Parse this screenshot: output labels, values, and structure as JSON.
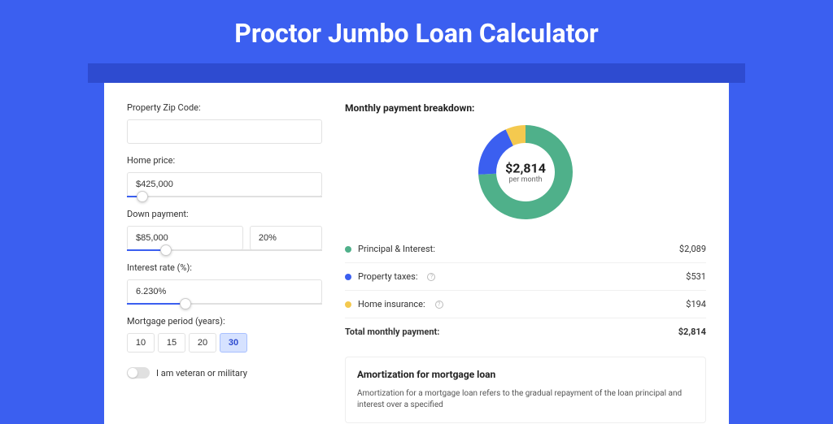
{
  "page": {
    "title": "Proctor Jumbo Loan Calculator",
    "background_color": "#3b5ff0",
    "accent_color": "#2e4bd0"
  },
  "form": {
    "zip": {
      "label": "Property Zip Code:",
      "value": ""
    },
    "home_price": {
      "label": "Home price:",
      "value": "$425,000",
      "slider_pct": 8
    },
    "down_payment": {
      "label": "Down payment:",
      "value": "$85,000",
      "pct_value": "20%",
      "slider_pct": 20
    },
    "interest_rate": {
      "label": "Interest rate (%):",
      "value": "6.230%",
      "slider_pct": 30
    },
    "mortgage_period": {
      "label": "Mortgage period (years):",
      "options": [
        "10",
        "15",
        "20",
        "30"
      ],
      "selected_index": 3
    },
    "veteran": {
      "label": "I am veteran or military",
      "checked": false
    }
  },
  "breakdown": {
    "title": "Monthly payment breakdown:",
    "donut": {
      "amount": "$2,814",
      "sub": "per month",
      "type": "donut",
      "slices": [
        {
          "key": "principal_interest",
          "value": 2089,
          "color": "#4fb08a",
          "pct": 74.2
        },
        {
          "key": "property_taxes",
          "value": 531,
          "color": "#3b5ff0",
          "pct": 18.9
        },
        {
          "key": "home_insurance",
          "value": 194,
          "color": "#f4c94f",
          "pct": 6.9
        }
      ],
      "inner_radius": 36,
      "outer_radius": 58,
      "background_color": "#ffffff"
    },
    "rows": [
      {
        "label": "Principal & Interest:",
        "value": "$2,089",
        "color": "#4fb08a",
        "info": false
      },
      {
        "label": "Property taxes:",
        "value": "$531",
        "color": "#3b5ff0",
        "info": true
      },
      {
        "label": "Home insurance:",
        "value": "$194",
        "color": "#f4c94f",
        "info": true
      }
    ],
    "total": {
      "label": "Total monthly payment:",
      "value": "$2,814"
    }
  },
  "amortization": {
    "title": "Amortization for mortgage loan",
    "text": "Amortization for a mortgage loan refers to the gradual repayment of the loan principal and interest over a specified"
  }
}
